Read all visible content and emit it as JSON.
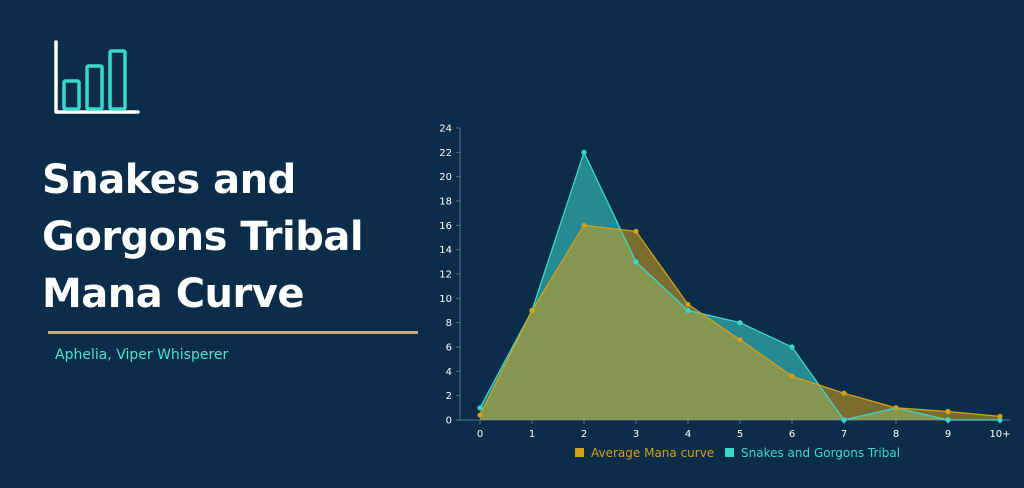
{
  "header": {
    "title_lines": [
      "Snakes and",
      "Gorgons Tribal",
      "Mana Curve"
    ],
    "subtitle": "Aphelia, Viper Whisperer",
    "logo_icon": "bar-chart-icon"
  },
  "colors": {
    "background": "#0c2d4a",
    "accent_line": "#c9a97a",
    "subtitle": "#4ee0d0",
    "series_average": "#d4a017",
    "series_tribal": "#3ad6d0"
  },
  "chart_data": {
    "type": "area",
    "categories": [
      "0",
      "1",
      "2",
      "3",
      "4",
      "5",
      "6",
      "7",
      "8",
      "9",
      "10+"
    ],
    "series": [
      {
        "name": "Average Mana curve",
        "values": [
          0.4,
          9,
          16,
          15.5,
          9.5,
          6.6,
          3.6,
          2.2,
          1,
          0.7,
          0.3
        ]
      },
      {
        "name": "Snakes and Gorgons Tribal",
        "values": [
          1,
          9,
          22,
          13,
          9,
          8,
          6,
          0,
          1,
          0,
          0
        ]
      }
    ],
    "y_ticks": [
      "0",
      "2",
      "4",
      "6",
      "8",
      "10",
      "12",
      "14",
      "16",
      "18",
      "20",
      "22",
      "24"
    ],
    "ylim": [
      0,
      24
    ],
    "grid": false,
    "legend_position": "bottom"
  }
}
